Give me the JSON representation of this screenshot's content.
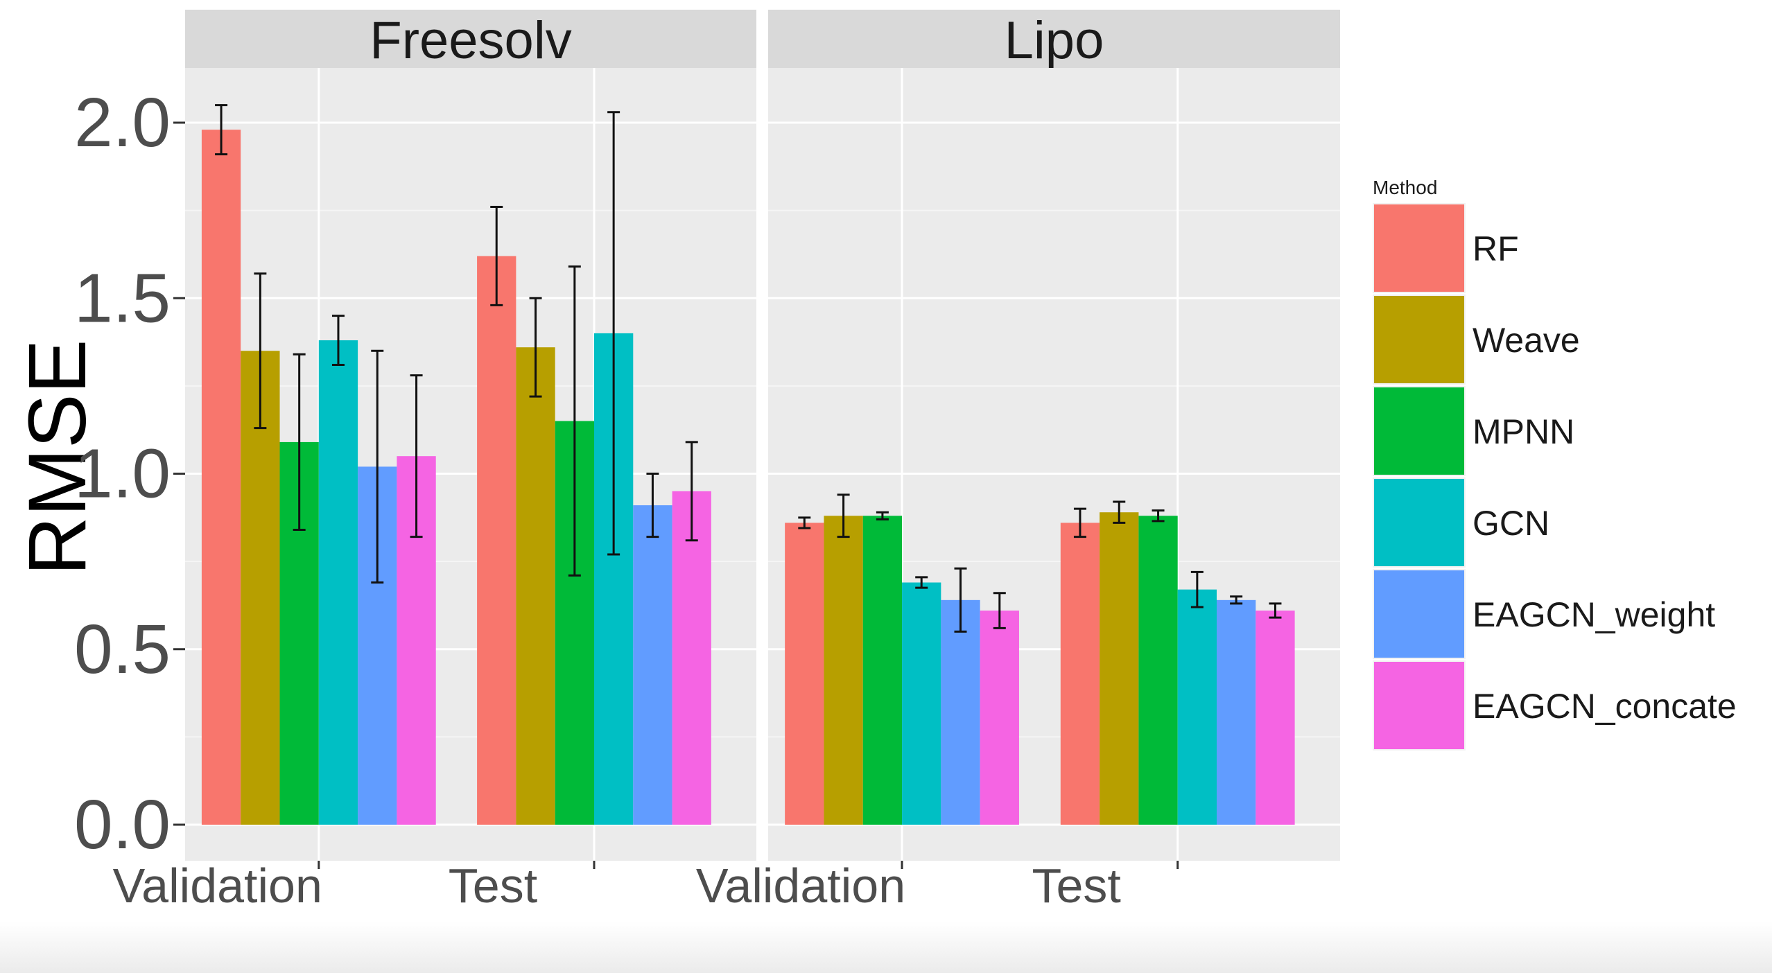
{
  "chart_data": {
    "type": "bar",
    "ylabel": "RMSE",
    "ylim": [
      0,
      2.2
    ],
    "yticks": [
      "0.0",
      "0.5",
      "1.0",
      "1.5",
      "2.0"
    ],
    "grid": true,
    "legend": {
      "title": "Method",
      "position": "right",
      "entries": [
        {
          "name": "RF",
          "color": "#F8766D"
        },
        {
          "name": "Weave",
          "color": "#B79F00"
        },
        {
          "name": "MPNN",
          "color": "#00BA38"
        },
        {
          "name": "GCN",
          "color": "#00BFC4"
        },
        {
          "name": "EAGCN_weight",
          "color": "#619CFF"
        },
        {
          "name": "EAGCN_concate",
          "color": "#F564E3"
        }
      ]
    },
    "panels": [
      {
        "title": "Freesolv",
        "categories": [
          "Validation",
          "Test"
        ],
        "series": [
          {
            "name": "RF",
            "values": [
              1.98,
              1.62
            ],
            "errors": [
              0.07,
              0.14
            ]
          },
          {
            "name": "Weave",
            "values": [
              1.35,
              1.36
            ],
            "errors": [
              0.22,
              0.14
            ]
          },
          {
            "name": "MPNN",
            "values": [
              1.09,
              1.15
            ],
            "errors": [
              0.25,
              0.44
            ]
          },
          {
            "name": "GCN",
            "values": [
              1.38,
              1.4
            ],
            "errors": [
              0.07,
              0.63
            ]
          },
          {
            "name": "EAGCN_weight",
            "values": [
              1.02,
              0.91
            ],
            "errors": [
              0.33,
              0.09
            ]
          },
          {
            "name": "EAGCN_concate",
            "values": [
              1.05,
              0.95
            ],
            "errors": [
              0.23,
              0.14
            ]
          }
        ]
      },
      {
        "title": "Lipo",
        "categories": [
          "Validation",
          "Test"
        ],
        "series": [
          {
            "name": "RF",
            "values": [
              0.86,
              0.86
            ],
            "errors": [
              0.015,
              0.04
            ]
          },
          {
            "name": "Weave",
            "values": [
              0.88,
              0.89
            ],
            "errors": [
              0.06,
              0.03
            ]
          },
          {
            "name": "MPNN",
            "values": [
              0.88,
              0.88
            ],
            "errors": [
              0.01,
              0.015
            ]
          },
          {
            "name": "GCN",
            "values": [
              0.69,
              0.67
            ],
            "errors": [
              0.015,
              0.05
            ]
          },
          {
            "name": "EAGCN_weight",
            "values": [
              0.64,
              0.64
            ],
            "errors": [
              0.09,
              0.01
            ]
          },
          {
            "name": "EAGCN_concate",
            "values": [
              0.61,
              0.61
            ],
            "errors": [
              0.05,
              0.02
            ]
          }
        ]
      }
    ]
  }
}
